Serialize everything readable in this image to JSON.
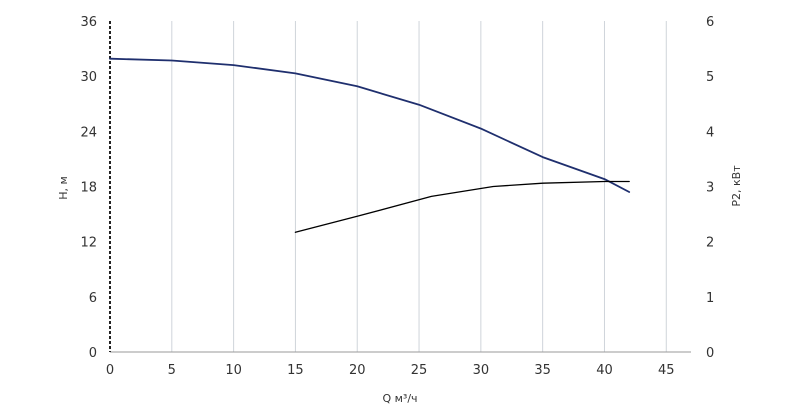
{
  "chart_data": {
    "type": "line",
    "xlabel": "Q м³/ч",
    "ylabel_left": "H, м",
    "ylabel_right": "P2, кВт",
    "xlim": [
      0,
      47
    ],
    "ylim_left": [
      0,
      36
    ],
    "ylim_right": [
      0,
      6
    ],
    "x_ticks": [
      0,
      5,
      10,
      15,
      20,
      25,
      30,
      35,
      40,
      45
    ],
    "y_left_ticks": [
      0,
      6,
      12,
      18,
      24,
      30,
      36
    ],
    "y_right_ticks": [
      0,
      1,
      2,
      3,
      4,
      5,
      6
    ],
    "grid": "vertical",
    "series": [
      {
        "axis": "left",
        "color": "#1f2f6e",
        "x": [
          0,
          5,
          10,
          15,
          20,
          25,
          30,
          35,
          40,
          42
        ],
        "y": [
          31.9,
          31.7,
          31.2,
          30.3,
          28.9,
          26.9,
          24.3,
          21.2,
          18.8,
          17.4
        ]
      },
      {
        "axis": "right",
        "color": "#000000",
        "x": [
          15,
          20,
          26,
          31,
          35,
          40,
          42
        ],
        "y": [
          2.17,
          2.46,
          2.82,
          3.0,
          3.06,
          3.09,
          3.09
        ]
      }
    ]
  }
}
